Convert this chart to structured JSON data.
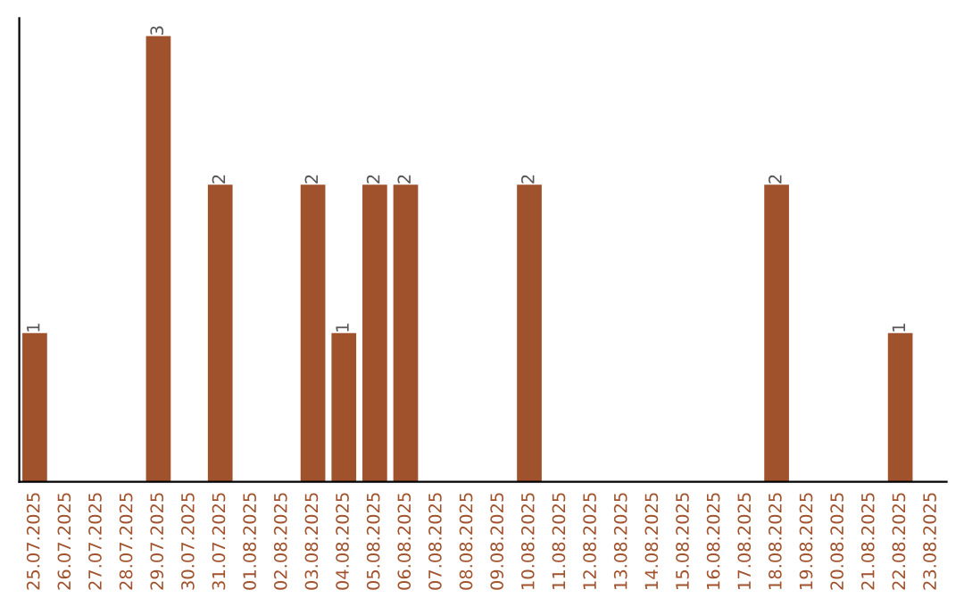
{
  "chart_data": {
    "type": "bar",
    "categories": [
      "25.07.2025",
      "26.07.2025",
      "27.07.2025",
      "28.07.2025",
      "29.07.2025",
      "30.07.2025",
      "31.07.2025",
      "01.08.2025",
      "02.08.2025",
      "03.08.2025",
      "04.08.2025",
      "05.08.2025",
      "06.08.2025",
      "07.08.2025",
      "08.08.2025",
      "09.08.2025",
      "10.08.2025",
      "11.08.2025",
      "12.08.2025",
      "13.08.2025",
      "14.08.2025",
      "15.08.2025",
      "16.08.2025",
      "17.08.2025",
      "18.08.2025",
      "19.08.2025",
      "20.08.2025",
      "21.08.2025",
      "22.08.2025",
      "23.08.2025"
    ],
    "values": [
      1,
      0,
      0,
      0,
      3,
      0,
      2,
      0,
      0,
      2,
      1,
      2,
      2,
      0,
      0,
      0,
      2,
      0,
      0,
      0,
      0,
      0,
      0,
      0,
      2,
      0,
      0,
      0,
      1,
      0
    ],
    "value_labels": [
      "1",
      null,
      null,
      null,
      "3",
      null,
      "2",
      null,
      null,
      "2",
      "1",
      "2",
      "2",
      null,
      null,
      null,
      "2",
      null,
      null,
      null,
      null,
      null,
      null,
      null,
      "2",
      null,
      null,
      null,
      "1",
      null
    ],
    "color": "#a0522d",
    "grid": false,
    "legend": false,
    "tick_labels": "x"
  }
}
